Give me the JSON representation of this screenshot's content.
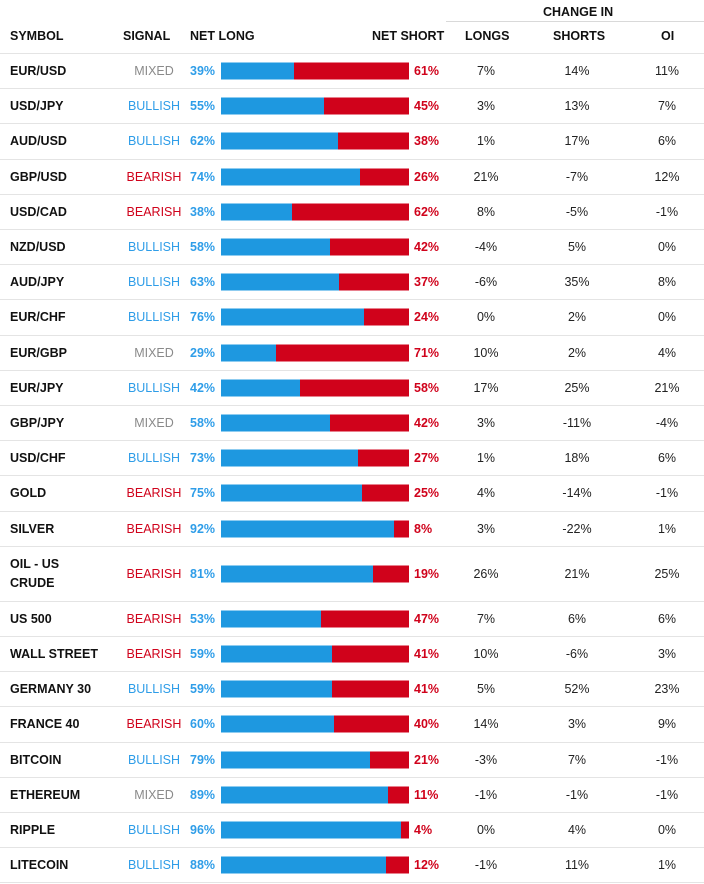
{
  "colors": {
    "long": "#1e98e0",
    "short": "#d0021b",
    "bullish": "#2e9de8",
    "bearish": "#d0021b",
    "mixed": "#8a8a8a"
  },
  "header": {
    "symbol": "SYMBOL",
    "signal": "SIGNAL",
    "net_long": "NET LONG",
    "net_short": "NET SHORT",
    "change_in": "CHANGE IN",
    "longs": "LONGS",
    "shorts": "SHORTS",
    "oi": "OI"
  },
  "rows": [
    {
      "symbol": "EUR/USD",
      "signal": "MIXED",
      "net_long": "39%",
      "net_short": "61%",
      "long_pct": 39,
      "longs": "7%",
      "shorts": "14%",
      "oi": "11%"
    },
    {
      "symbol": "USD/JPY",
      "signal": "BULLISH",
      "net_long": "55%",
      "net_short": "45%",
      "long_pct": 55,
      "longs": "3%",
      "shorts": "13%",
      "oi": "7%"
    },
    {
      "symbol": "AUD/USD",
      "signal": "BULLISH",
      "net_long": "62%",
      "net_short": "38%",
      "long_pct": 62,
      "longs": "1%",
      "shorts": "17%",
      "oi": "6%"
    },
    {
      "symbol": "GBP/USD",
      "signal": "BEARISH",
      "net_long": "74%",
      "net_short": "26%",
      "long_pct": 74,
      "longs": "21%",
      "shorts": "-7%",
      "oi": "12%"
    },
    {
      "symbol": "USD/CAD",
      "signal": "BEARISH",
      "net_long": "38%",
      "net_short": "62%",
      "long_pct": 38,
      "longs": "8%",
      "shorts": "-5%",
      "oi": "-1%"
    },
    {
      "symbol": "NZD/USD",
      "signal": "BULLISH",
      "net_long": "58%",
      "net_short": "42%",
      "long_pct": 58,
      "longs": "-4%",
      "shorts": "5%",
      "oi": "0%"
    },
    {
      "symbol": "AUD/JPY",
      "signal": "BULLISH",
      "net_long": "63%",
      "net_short": "37%",
      "long_pct": 63,
      "longs": "-6%",
      "shorts": "35%",
      "oi": "8%"
    },
    {
      "symbol": "EUR/CHF",
      "signal": "BULLISH",
      "net_long": "76%",
      "net_short": "24%",
      "long_pct": 76,
      "longs": "0%",
      "shorts": "2%",
      "oi": "0%"
    },
    {
      "symbol": "EUR/GBP",
      "signal": "MIXED",
      "net_long": "29%",
      "net_short": "71%",
      "long_pct": 29,
      "longs": "10%",
      "shorts": "2%",
      "oi": "4%"
    },
    {
      "symbol": "EUR/JPY",
      "signal": "BULLISH",
      "net_long": "42%",
      "net_short": "58%",
      "long_pct": 42,
      "longs": "17%",
      "shorts": "25%",
      "oi": "21%"
    },
    {
      "symbol": "GBP/JPY",
      "signal": "MIXED",
      "net_long": "58%",
      "net_short": "42%",
      "long_pct": 58,
      "longs": "3%",
      "shorts": "-11%",
      "oi": "-4%"
    },
    {
      "symbol": "USD/CHF",
      "signal": "BULLISH",
      "net_long": "73%",
      "net_short": "27%",
      "long_pct": 73,
      "longs": "1%",
      "shorts": "18%",
      "oi": "6%"
    },
    {
      "symbol": "GOLD",
      "signal": "BEARISH",
      "net_long": "75%",
      "net_short": "25%",
      "long_pct": 75,
      "longs": "4%",
      "shorts": "-14%",
      "oi": "-1%"
    },
    {
      "symbol": "SILVER",
      "signal": "BEARISH",
      "net_long": "92%",
      "net_short": "8%",
      "long_pct": 92,
      "longs": "3%",
      "shorts": "-22%",
      "oi": "1%"
    },
    {
      "symbol": "OIL - US CRUDE",
      "signal": "BEARISH",
      "net_long": "81%",
      "net_short": "19%",
      "long_pct": 81,
      "longs": "26%",
      "shorts": "21%",
      "oi": "25%"
    },
    {
      "symbol": "US 500",
      "signal": "BEARISH",
      "net_long": "53%",
      "net_short": "47%",
      "long_pct": 53,
      "longs": "7%",
      "shorts": "6%",
      "oi": "6%"
    },
    {
      "symbol": "WALL STREET",
      "signal": "BEARISH",
      "net_long": "59%",
      "net_short": "41%",
      "long_pct": 59,
      "longs": "10%",
      "shorts": "-6%",
      "oi": "3%"
    },
    {
      "symbol": "GERMANY 30",
      "signal": "BULLISH",
      "net_long": "59%",
      "net_short": "41%",
      "long_pct": 59,
      "longs": "5%",
      "shorts": "52%",
      "oi": "23%"
    },
    {
      "symbol": "FRANCE 40",
      "signal": "BEARISH",
      "net_long": "60%",
      "net_short": "40%",
      "long_pct": 60,
      "longs": "14%",
      "shorts": "3%",
      "oi": "9%"
    },
    {
      "symbol": "BITCOIN",
      "signal": "BULLISH",
      "net_long": "79%",
      "net_short": "21%",
      "long_pct": 79,
      "longs": "-3%",
      "shorts": "7%",
      "oi": "-1%"
    },
    {
      "symbol": "ETHEREUM",
      "signal": "MIXED",
      "net_long": "89%",
      "net_short": "11%",
      "long_pct": 89,
      "longs": "-1%",
      "shorts": "-1%",
      "oi": "-1%"
    },
    {
      "symbol": "RIPPLE",
      "signal": "BULLISH",
      "net_long": "96%",
      "net_short": "4%",
      "long_pct": 96,
      "longs": "0%",
      "shorts": "4%",
      "oi": "0%"
    },
    {
      "symbol": "LITECOIN",
      "signal": "BULLISH",
      "net_long": "88%",
      "net_short": "12%",
      "long_pct": 88,
      "longs": "-1%",
      "shorts": "11%",
      "oi": "1%"
    }
  ]
}
